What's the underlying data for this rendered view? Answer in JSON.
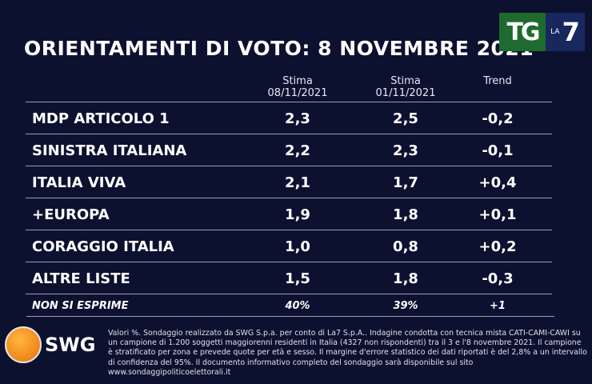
{
  "title": "ORIENTAMENTI DI VOTO: 8 NOVEMBRE 2021",
  "logo": {
    "tg": "TG",
    "la": "LA",
    "seven": "7"
  },
  "headers": {
    "col1": "Stima\n08/11/2021",
    "col1a": "Stima",
    "col1b": "08/11/2021",
    "col2a": "Stima",
    "col2b": "01/11/2021",
    "trend": "Trend"
  },
  "rows": [
    {
      "name": "MDP ARTICOLO 1",
      "v1": "2,3",
      "v2": "2,5",
      "trend": "-0,2"
    },
    {
      "name": "SINISTRA ITALIANA",
      "v1": "2,2",
      "v2": "2,3",
      "trend": "-0,1"
    },
    {
      "name": "ITALIA VIVA",
      "v1": "2,1",
      "v2": "1,7",
      "trend": "+0,4"
    },
    {
      "name": "+EUROPA",
      "v1": "1,9",
      "v2": "1,8",
      "trend": "+0,1"
    },
    {
      "name": "CORAGGIO ITALIA",
      "v1": "1,0",
      "v2": "0,8",
      "trend": "+0,2"
    },
    {
      "name": "ALTRE LISTE",
      "v1": "1,5",
      "v2": "1,8",
      "trend": "-0,3"
    },
    {
      "name": "NON SI ESPRIME",
      "v1": "40%",
      "v2": "39%",
      "trend": "+1"
    }
  ],
  "brand": "SWG",
  "note": "Valori %. Sondaggio realizzato da SWG S.p.a. per conto di La7 S.p.A.. Indagine condotta con tecnica mista CATI-CAMI-CAWI su un campione di 1.200 soggetti maggiorenni residenti in Italia (4327 non rispondenti) tra il 3 e l'8 novembre 2021. Il campione è stratificato per zona e prevede quote per età e sesso. Il margine d'errore statistico dei dati riportati è del 2,8% a un intervallo di confidenza del 95%. Il documento informativo completo del sondaggio sarà disponibile sul sito www.sondaggipoliticoelettorali.it"
}
